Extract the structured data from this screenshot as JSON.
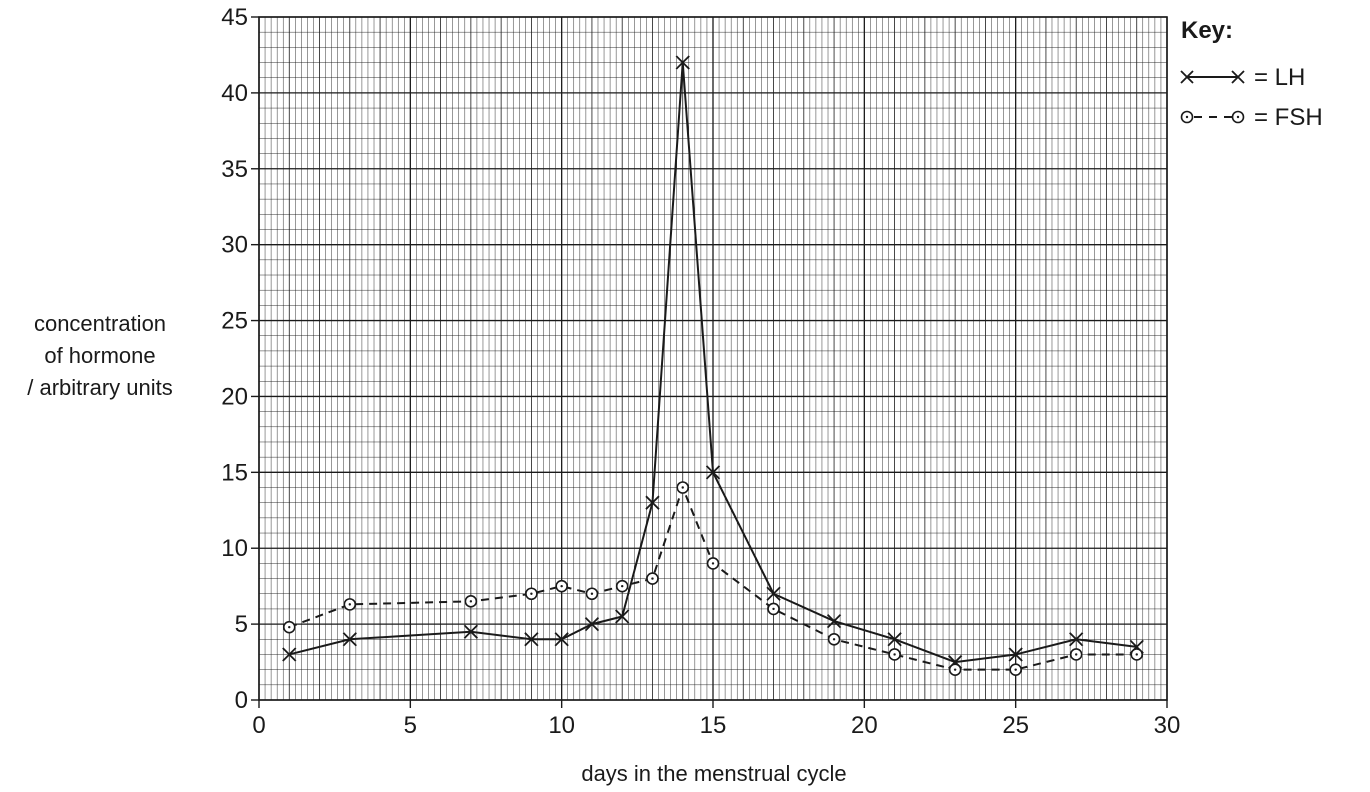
{
  "chart_data": {
    "type": "line",
    "xlabel": "days in the menstrual cycle",
    "ylabel": [
      "concentration",
      "of hormone",
      "/ arbitrary units"
    ],
    "xlim": [
      0,
      30
    ],
    "ylim": [
      0,
      45
    ],
    "x_ticks": [
      0,
      5,
      10,
      15,
      20,
      25,
      30
    ],
    "y_ticks": [
      0,
      5,
      10,
      15,
      20,
      25,
      30,
      35,
      40,
      45
    ],
    "grid": true,
    "legend": {
      "title": "Key:",
      "position": "top-right",
      "entries": [
        "= LH",
        "= FSH"
      ]
    },
    "series": [
      {
        "name": "LH",
        "marker": "cross",
        "line": "solid",
        "points": [
          [
            1,
            3
          ],
          [
            3,
            4
          ],
          [
            7,
            4.5
          ],
          [
            9,
            4
          ],
          [
            10,
            4
          ],
          [
            11,
            5
          ],
          [
            12,
            5.5
          ],
          [
            13,
            13
          ],
          [
            14,
            42
          ],
          [
            15,
            15
          ],
          [
            17,
            7
          ],
          [
            19,
            5.2
          ],
          [
            21,
            4
          ],
          [
            23,
            2.5
          ],
          [
            25,
            3
          ],
          [
            27,
            4
          ],
          [
            29,
            3.5
          ]
        ]
      },
      {
        "name": "FSH",
        "marker": "circle",
        "line": "dashed",
        "points": [
          [
            1,
            4.8
          ],
          [
            3,
            6.3
          ],
          [
            7,
            6.5
          ],
          [
            9,
            7
          ],
          [
            10,
            7.5
          ],
          [
            11,
            7
          ],
          [
            12,
            7.5
          ],
          [
            13,
            8
          ],
          [
            14,
            14
          ],
          [
            15,
            9
          ],
          [
            17,
            6
          ],
          [
            19,
            4
          ],
          [
            21,
            3
          ],
          [
            23,
            2
          ],
          [
            25,
            2
          ],
          [
            27,
            3
          ],
          [
            29,
            3
          ]
        ]
      }
    ]
  }
}
